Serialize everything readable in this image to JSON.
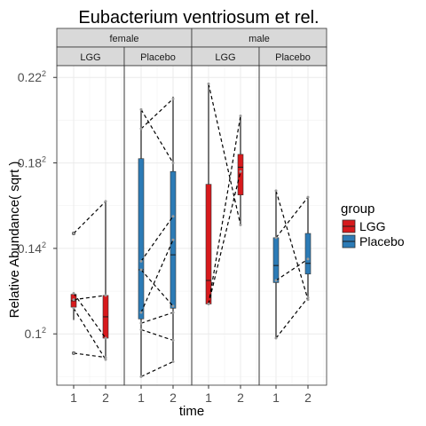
{
  "chart_data": {
    "type": "box",
    "title": "Eubacterium ventriosum et rel.",
    "xlabel": "time",
    "ylabel": "Relative Abundance( sqrt )",
    "y_scale": "sqrt",
    "y_ticks": [
      {
        "base": "0.1",
        "exp": "2"
      },
      {
        "base": "0.14",
        "exp": "2"
      },
      {
        "base": "0.18",
        "exp": "2"
      },
      {
        "base": "0.22",
        "exp": "2"
      }
    ],
    "ylim_sqrt": [
      0.076,
      0.2255
    ],
    "x_ticks": [
      "1",
      "2"
    ],
    "facet_rows_title": [
      "female",
      "male"
    ],
    "facets": [
      {
        "sex": "female",
        "group": "LGG",
        "color": "#D7191C",
        "boxes": [
          {
            "time": "1",
            "min": 0.1065,
            "q1": 0.1125,
            "median": 0.1155,
            "q3": 0.1185,
            "max": 0.119
          },
          {
            "time": "2",
            "min": 0.088,
            "q1": 0.098,
            "median": 0.108,
            "q3": 0.118,
            "max": 0.162
          }
        ],
        "outliers": [
          {
            "time": "1",
            "value": 0.147
          },
          {
            "time": "1",
            "value": 0.091
          }
        ],
        "pairs": [
          [
            0.147,
            0.162
          ],
          [
            0.119,
            0.098
          ],
          [
            0.116,
            0.118
          ],
          [
            0.112,
            0.088
          ],
          [
            0.091,
            0.089
          ]
        ]
      },
      {
        "sex": "female",
        "group": "Placebo",
        "color": "#2C7BB6",
        "boxes": [
          {
            "time": "1",
            "min": 0.08,
            "q1": 0.107,
            "median": 0.13,
            "q3": 0.182,
            "max": 0.205
          },
          {
            "time": "2",
            "min": 0.087,
            "q1": 0.112,
            "median": 0.137,
            "q3": 0.176,
            "max": 0.211
          }
        ],
        "pairs": [
          [
            0.205,
            0.18
          ],
          [
            0.196,
            0.21
          ],
          [
            0.134,
            0.155
          ],
          [
            0.13,
            0.113
          ],
          [
            0.11,
            0.144
          ],
          [
            0.105,
            0.11
          ],
          [
            0.102,
            0.097
          ],
          [
            0.08,
            0.087
          ]
        ]
      },
      {
        "sex": "male",
        "group": "LGG",
        "color": "#D7191C",
        "boxes": [
          {
            "time": "1",
            "min": 0.114,
            "q1": 0.114,
            "median": 0.125,
            "q3": 0.17,
            "max": 0.217
          },
          {
            "time": "2",
            "min": 0.151,
            "q1": 0.165,
            "median": 0.178,
            "q3": 0.184,
            "max": 0.202
          }
        ],
        "pairs": [
          [
            0.217,
            0.151
          ],
          [
            0.114,
            0.176
          ],
          [
            0.114,
            0.202
          ]
        ]
      },
      {
        "sex": "male",
        "group": "Placebo",
        "color": "#2C7BB6",
        "boxes": [
          {
            "time": "1",
            "min": 0.098,
            "q1": 0.124,
            "median": 0.132,
            "q3": 0.145,
            "max": 0.167
          },
          {
            "time": "2",
            "min": 0.116,
            "q1": 0.128,
            "median": 0.133,
            "q3": 0.147,
            "max": 0.164
          }
        ],
        "pairs": [
          [
            0.167,
            0.116
          ],
          [
            0.145,
            0.164
          ],
          [
            0.125,
            0.135
          ],
          [
            0.098,
            0.117
          ]
        ]
      }
    ],
    "legend": {
      "title": "group",
      "placement": "right",
      "items": [
        {
          "label": "LGG",
          "color": "#D7191C"
        },
        {
          "label": "Placebo",
          "color": "#2C7BB6"
        }
      ]
    },
    "grid": true
  }
}
